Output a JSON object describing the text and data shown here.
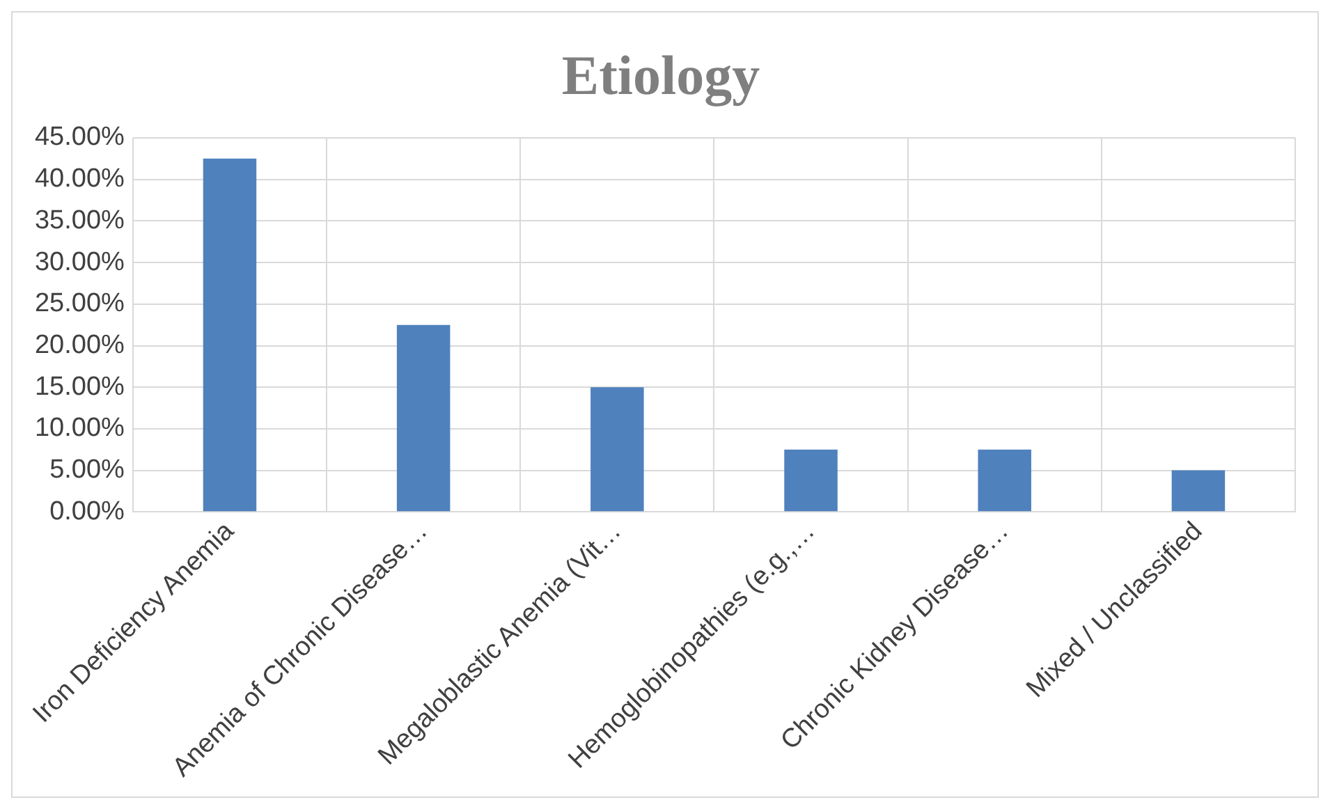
{
  "chart_data": {
    "type": "bar",
    "title": "Etiology",
    "categories": [
      "Iron Deficiency Anemia",
      "Anemia of Chronic Disease…",
      "Megaloblastic Anemia (Vit…",
      "Hemoglobinopathies (e.g.,…",
      "Chronic Kidney Disease…",
      "Mixed / Unclassified"
    ],
    "values": [
      42.5,
      22.5,
      15,
      7.5,
      7.5,
      5
    ],
    "color": "#4f81bd",
    "ylim": [
      0,
      45
    ],
    "yticks": [
      {
        "value": 0,
        "label": "0.00%"
      },
      {
        "value": 5,
        "label": "5.00%"
      },
      {
        "value": 10,
        "label": "10.00%"
      },
      {
        "value": 15,
        "label": "15.00%"
      },
      {
        "value": 20,
        "label": "20.00%"
      },
      {
        "value": 25,
        "label": "25.00%"
      },
      {
        "value": 30,
        "label": "30.00%"
      },
      {
        "value": 35,
        "label": "35.00%"
      },
      {
        "value": 40,
        "label": "40.00%"
      },
      {
        "value": 45,
        "label": "45.00%"
      }
    ],
    "grid": true
  }
}
